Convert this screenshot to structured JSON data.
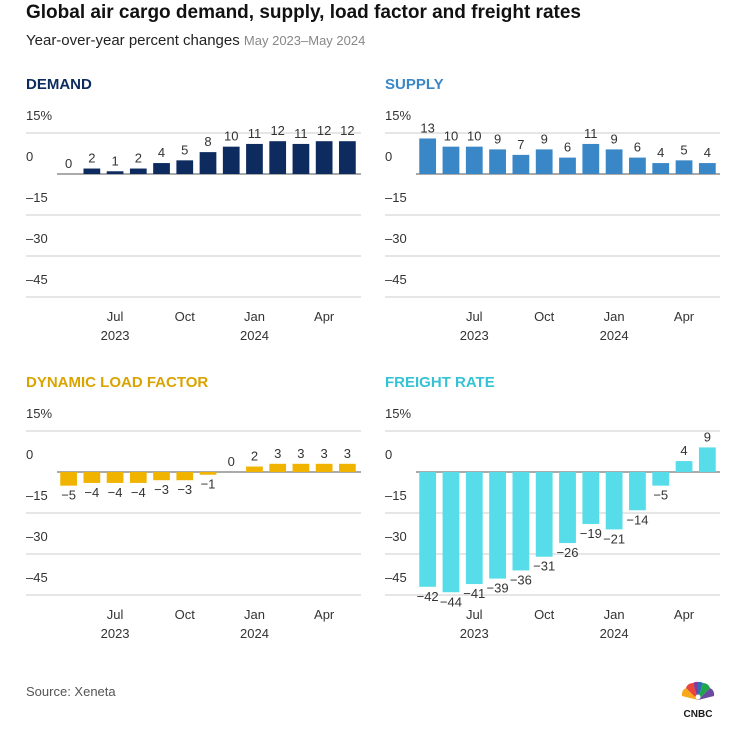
{
  "header": {
    "title": "Global air cargo demand, supply, load factor and freight rates",
    "subtitle": "Year-over-year percent changes",
    "subtitle_range": "May 2023–May 2024"
  },
  "footer": {
    "source": "Source: Xeneta",
    "logo_text": "CNBC"
  },
  "chart_data": [
    {
      "type": "bar",
      "title": "DEMAND",
      "color": "#0d2b5e",
      "categories": [
        "May 2023",
        "Jun 2023",
        "Jul 2023",
        "Aug 2023",
        "Sep 2023",
        "Oct 2023",
        "Nov 2023",
        "Dec 2023",
        "Jan 2024",
        "Feb 2024",
        "Mar 2024",
        "Apr 2024",
        "May 2024"
      ],
      "values": [
        0,
        2,
        1,
        2,
        4,
        5,
        8,
        10,
        11,
        12,
        11,
        12,
        12
      ],
      "ylim": [
        -50,
        15
      ],
      "yticks": [
        15,
        0,
        -15,
        -30,
        -45
      ],
      "ytick_labels": [
        "15%",
        "0",
        "–15",
        "–30",
        "–45"
      ],
      "xticks": [
        "Jul",
        "Oct",
        "Jan",
        "Apr"
      ],
      "xtick_years": [
        "2023",
        "2024"
      ]
    },
    {
      "type": "bar",
      "title": "SUPPLY",
      "color": "#3a87c8",
      "categories": [
        "May 2023",
        "Jun 2023",
        "Jul 2023",
        "Aug 2023",
        "Sep 2023",
        "Oct 2023",
        "Nov 2023",
        "Dec 2023",
        "Jan 2024",
        "Feb 2024",
        "Mar 2024",
        "Apr 2024",
        "May 2024"
      ],
      "values": [
        13,
        10,
        10,
        9,
        7,
        9,
        6,
        11,
        9,
        6,
        4,
        5,
        4
      ],
      "ylim": [
        -50,
        15
      ],
      "yticks": [
        15,
        0,
        -15,
        -30,
        -45
      ],
      "ytick_labels": [
        "15%",
        "0",
        "–15",
        "–30",
        "–45"
      ],
      "xticks": [
        "Jul",
        "Oct",
        "Jan",
        "Apr"
      ],
      "xtick_years": [
        "2023",
        "2024"
      ]
    },
    {
      "type": "bar",
      "title": "DYNAMIC LOAD FACTOR",
      "color": "#f0b400",
      "title_color": "#d9a400",
      "categories": [
        "May 2023",
        "Jun 2023",
        "Jul 2023",
        "Aug 2023",
        "Sep 2023",
        "Oct 2023",
        "Nov 2023",
        "Dec 2023",
        "Jan 2024",
        "Feb 2024",
        "Mar 2024",
        "Apr 2024",
        "May 2024"
      ],
      "values": [
        -5,
        -4,
        -4,
        -4,
        -3,
        -3,
        -1,
        0,
        2,
        3,
        3,
        3,
        3
      ],
      "ylim": [
        -50,
        15
      ],
      "yticks": [
        15,
        0,
        -15,
        -30,
        -45
      ],
      "ytick_labels": [
        "15%",
        "0",
        "–15",
        "–30",
        "–45"
      ],
      "xticks": [
        "Jul",
        "Oct",
        "Jan",
        "Apr"
      ],
      "xtick_years": [
        "2023",
        "2024"
      ]
    },
    {
      "type": "bar",
      "title": "FREIGHT RATE",
      "color": "#56dde9",
      "title_color": "#35c3d3",
      "categories": [
        "May 2023",
        "Jun 2023",
        "Jul 2023",
        "Aug 2023",
        "Sep 2023",
        "Oct 2023",
        "Nov 2023",
        "Dec 2023",
        "Jan 2024",
        "Feb 2024",
        "Mar 2024",
        "Apr 2024",
        "May 2024"
      ],
      "values": [
        -42,
        -44,
        -41,
        -39,
        -36,
        -31,
        -26,
        -19,
        -21,
        -14,
        -5,
        4,
        9
      ],
      "ylim": [
        -50,
        15
      ],
      "yticks": [
        15,
        0,
        -15,
        -30,
        -45
      ],
      "ytick_labels": [
        "15%",
        "0",
        "–15",
        "–30",
        "–45"
      ],
      "xticks": [
        "Jul",
        "Oct",
        "Jan",
        "Apr"
      ],
      "xtick_years": [
        "2023",
        "2024"
      ]
    }
  ]
}
